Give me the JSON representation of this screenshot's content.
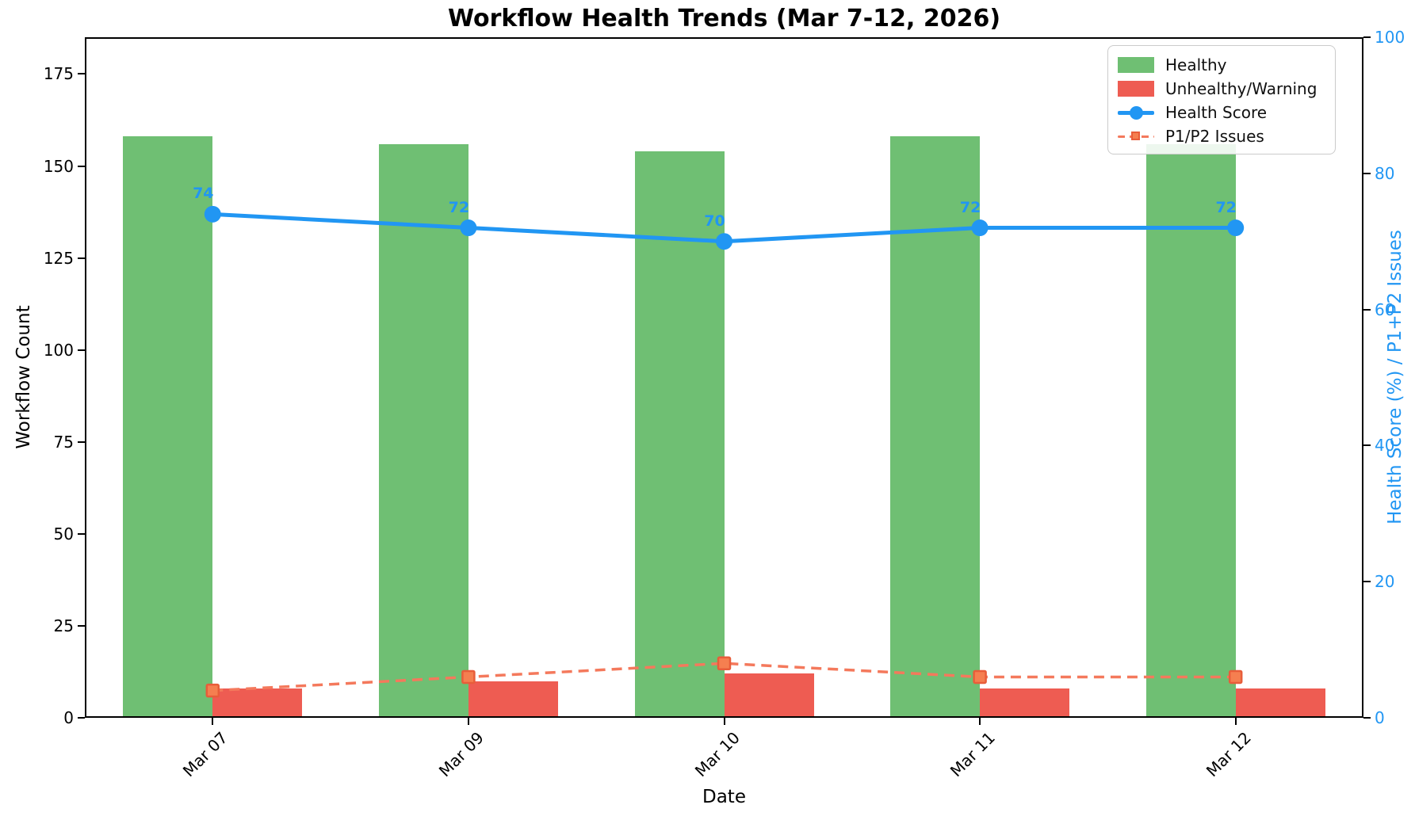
{
  "title": "Workflow Health Trends (Mar 7-12, 2026)",
  "chart_data": {
    "type": "bar",
    "title": "Workflow Health Trends (Mar 7-12, 2026)",
    "categories": [
      "Mar 07",
      "Mar 09",
      "Mar 10",
      "Mar 11",
      "Mar 12"
    ],
    "series": [
      {
        "name": "Healthy",
        "type": "bar",
        "axis": "left",
        "color": "#6fbf73",
        "values": [
          158,
          156,
          154,
          158,
          156
        ]
      },
      {
        "name": "Unhealthy/Warning",
        "type": "bar",
        "axis": "left",
        "color": "#ee5c52",
        "values": [
          8,
          10,
          12,
          8,
          8
        ]
      },
      {
        "name": "Health Score",
        "type": "line",
        "axis": "right",
        "color": "#2196f3",
        "marker": "circle",
        "values": [
          74,
          72,
          70,
          72,
          72
        ],
        "point_labels": [
          "74",
          "72",
          "70",
          "72",
          "72"
        ]
      },
      {
        "name": "P1/P2 Issues",
        "type": "dashed-line",
        "axis": "right",
        "color": "#f4795c",
        "marker": "square",
        "marker_fill": "#f57f50",
        "marker_edge": "#e85d3a",
        "values": [
          4,
          6,
          8,
          6,
          6
        ]
      }
    ],
    "xlabel": "Date",
    "ylabel_left": "Workflow Count",
    "ylabel_right": "Health Score (%) / P1+P2 Issues",
    "right_axis_color": "#2196f3",
    "ylim_left": [
      0,
      185
    ],
    "ylim_right": [
      0,
      100
    ],
    "yticks_left": [
      0,
      25,
      50,
      75,
      100,
      125,
      150,
      175
    ],
    "yticks_right": [
      0,
      20,
      40,
      60,
      80,
      100
    ],
    "grid": false,
    "legend_position": "top-right",
    "legend_items": [
      "Healthy",
      "Unhealthy/Warning",
      "Health Score",
      "P1/P2 Issues"
    ]
  }
}
